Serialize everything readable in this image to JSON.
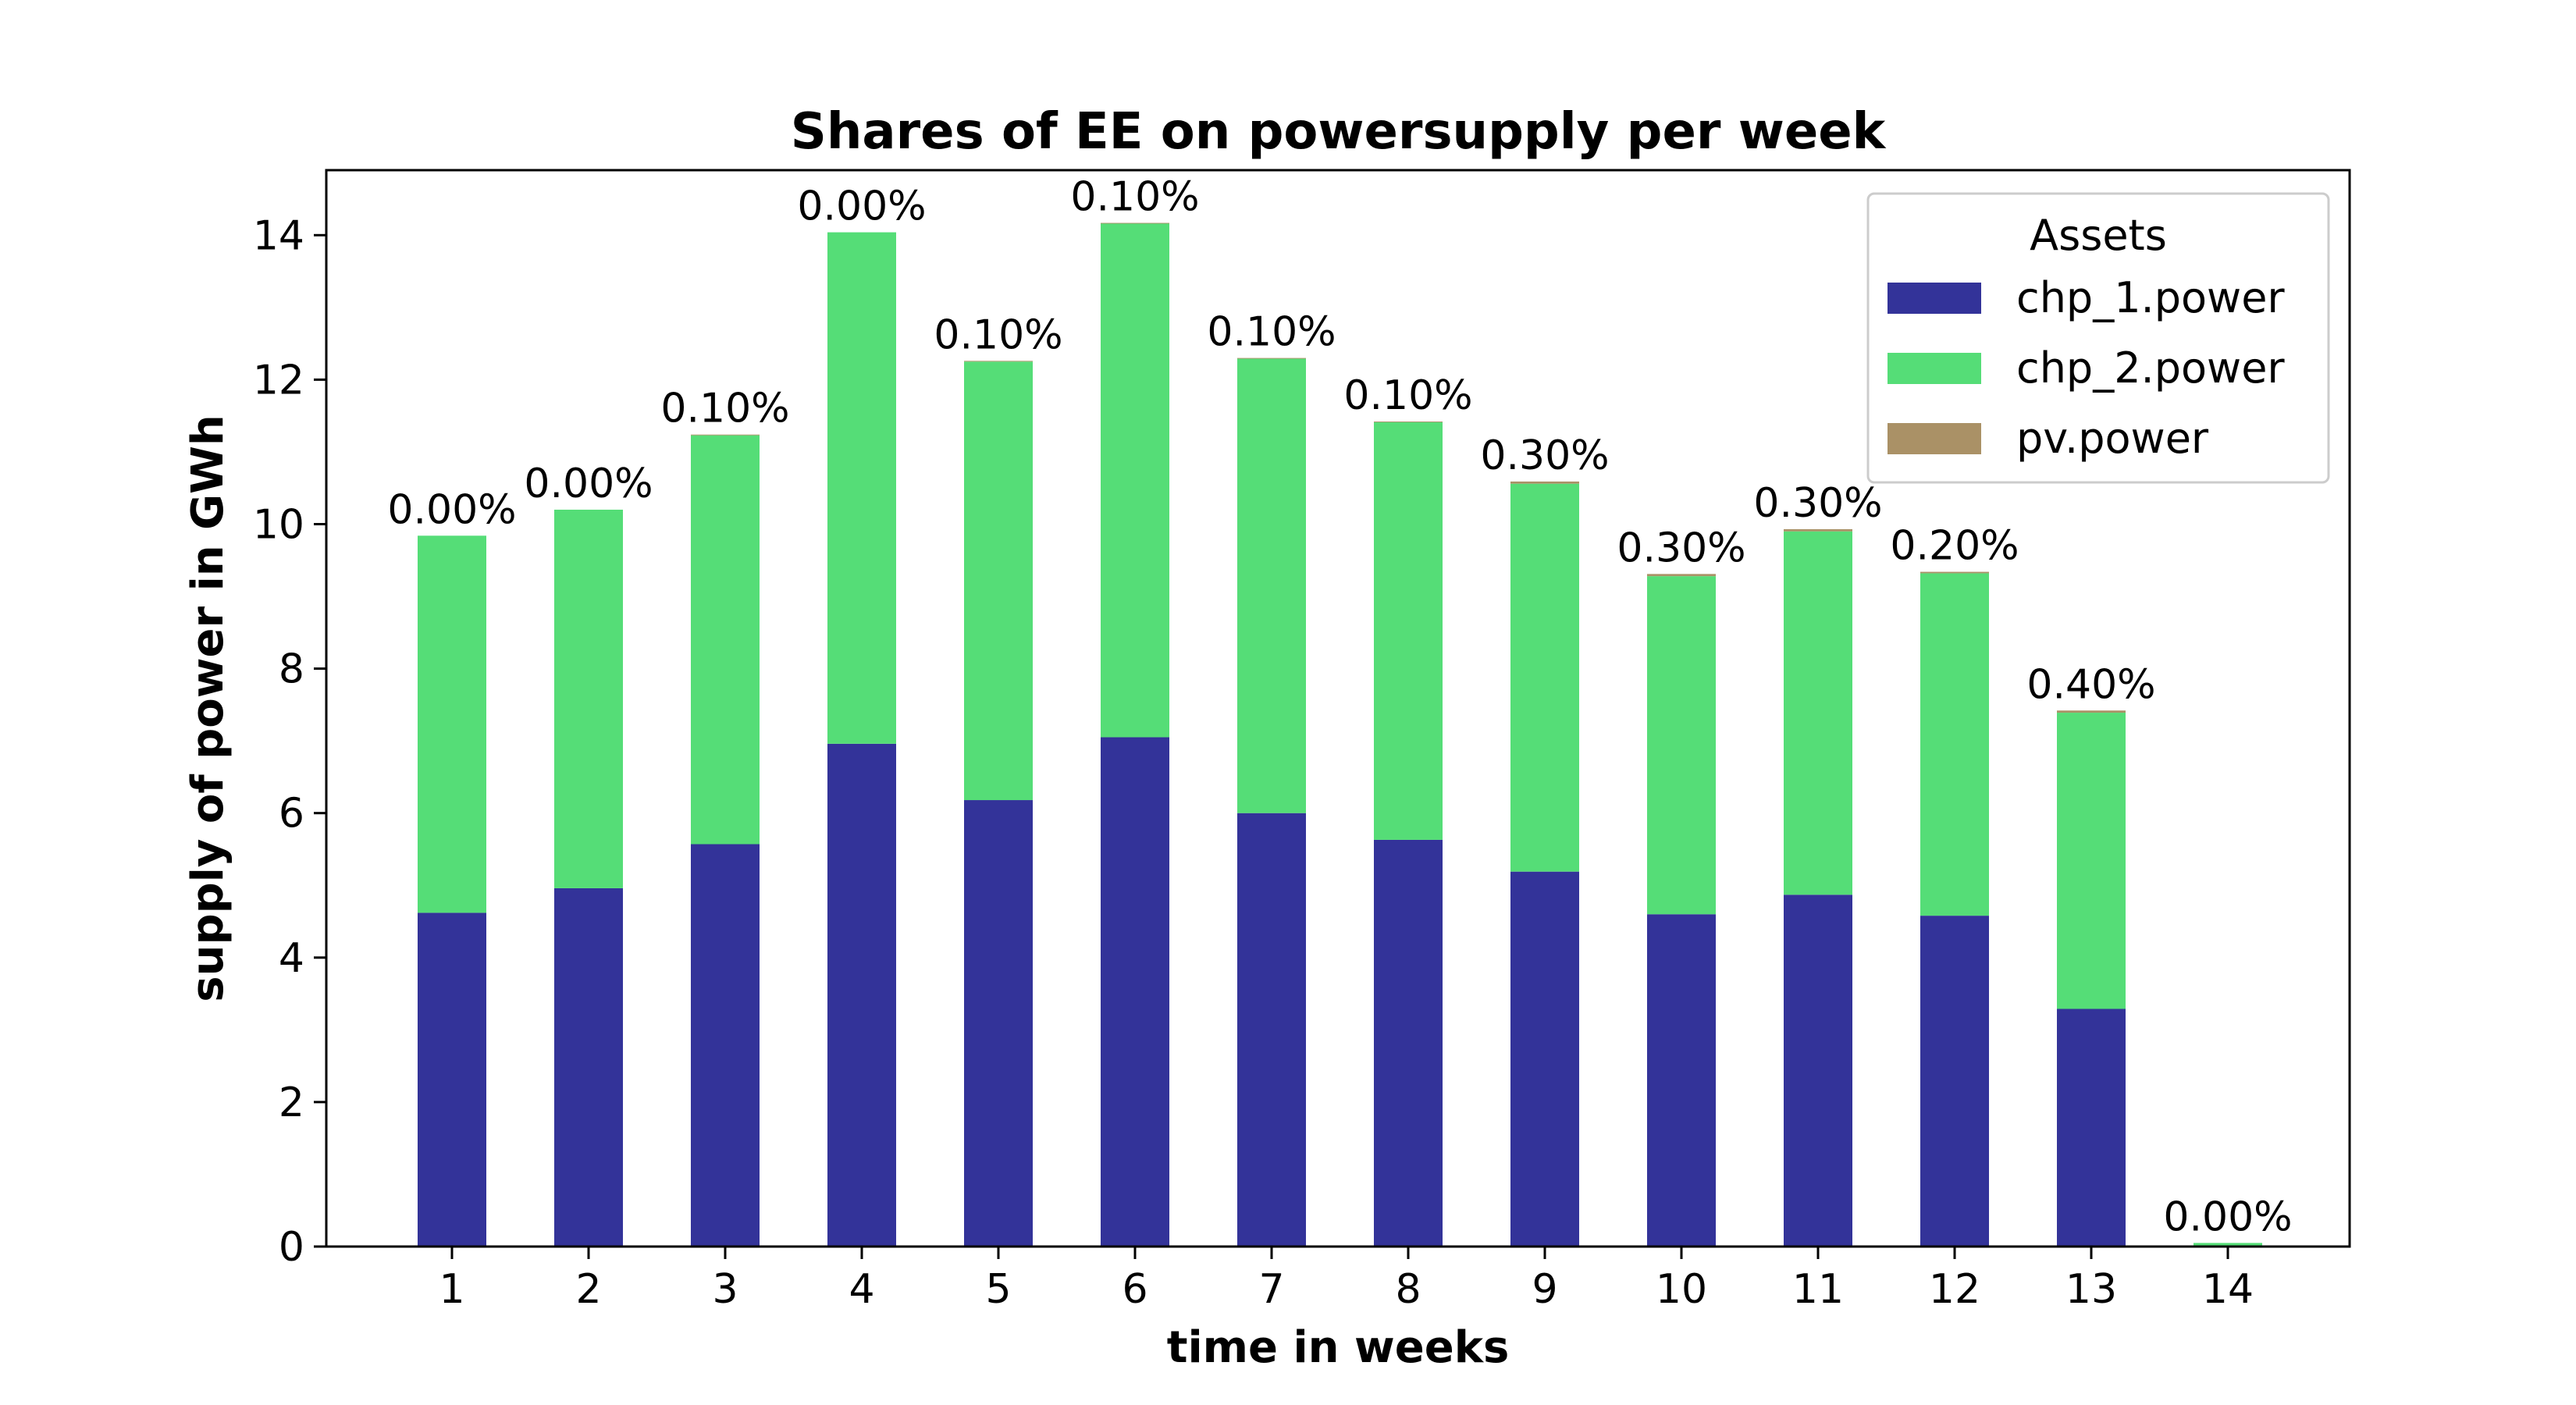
{
  "chart_data": {
    "type": "bar",
    "stacked": true,
    "title": "Shares of EE on powersupply per week",
    "xlabel": "time in weeks",
    "ylabel": "supply of power in GWh",
    "ylim": [
      0,
      14.9
    ],
    "yticks": [
      "0",
      "2",
      "4",
      "6",
      "8",
      "10",
      "12",
      "14"
    ],
    "categories": [
      "1",
      "2",
      "3",
      "4",
      "5",
      "6",
      "7",
      "8",
      "9",
      "10",
      "11",
      "12",
      "13",
      "14"
    ],
    "series": [
      {
        "name": "chp_1.power",
        "color": "#333399",
        "values": [
          4.62,
          4.96,
          5.57,
          6.96,
          6.18,
          7.05,
          6.0,
          5.63,
          5.19,
          4.6,
          4.87,
          4.58,
          3.29,
          0.0
        ]
      },
      {
        "name": "chp_2.power",
        "color": "#55dd77",
        "values": [
          5.22,
          5.24,
          5.66,
          7.08,
          6.07,
          7.11,
          6.29,
          5.78,
          5.37,
          4.68,
          5.03,
          4.74,
          4.1,
          0.05
        ]
      },
      {
        "name": "pv.power",
        "color": "#aa9166",
        "values": [
          0.0,
          0.0,
          0.01,
          0.0,
          0.01,
          0.01,
          0.01,
          0.01,
          0.03,
          0.03,
          0.03,
          0.02,
          0.03,
          0.0
        ]
      }
    ],
    "bar_labels": [
      "0.00%",
      "0.00%",
      "0.10%",
      "0.00%",
      "0.10%",
      "0.10%",
      "0.10%",
      "0.10%",
      "0.30%",
      "0.30%",
      "0.30%",
      "0.20%",
      "0.40%",
      "0.00%"
    ],
    "legend": {
      "title": "Assets",
      "position": "upper right"
    },
    "grid": false
  }
}
